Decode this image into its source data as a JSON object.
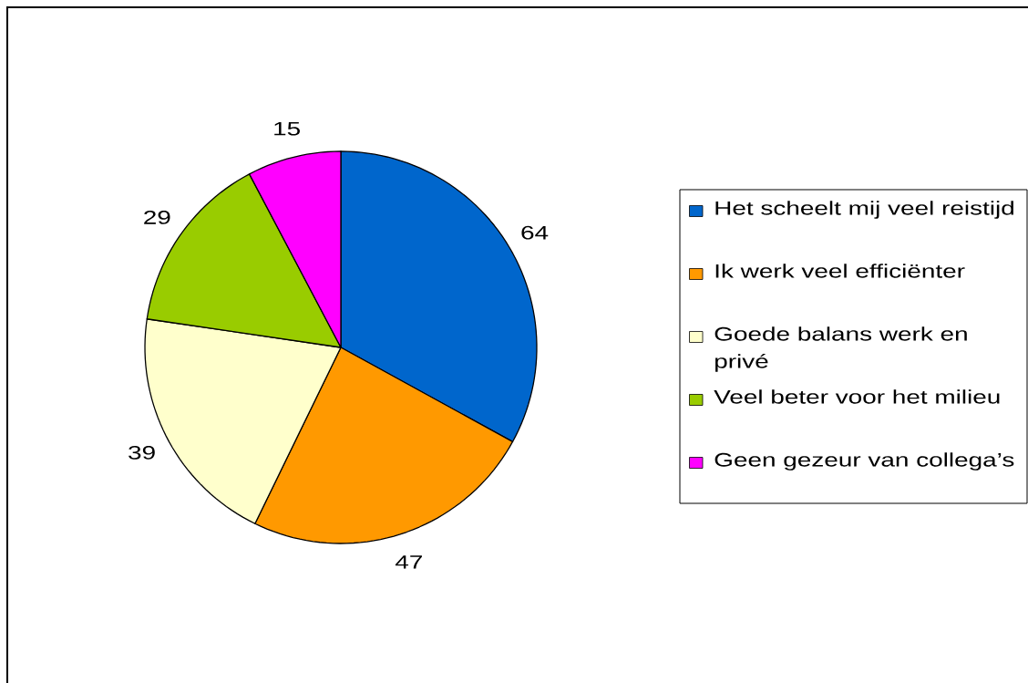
{
  "chart_data": {
    "type": "pie",
    "categories": [
      "Het scheelt mij veel reistijd",
      "Ik werk veel efficiënter",
      "Goede balans werk en privé",
      "Veel beter voor het milieu",
      "Geen gezeur van collega’s"
    ],
    "values": [
      64,
      47,
      39,
      29,
      15
    ],
    "colors": [
      "#0066cc",
      "#ff9900",
      "#ffffcc",
      "#99cc00",
      "#ff00ff"
    ],
    "data_labels": true,
    "legend": "right"
  }
}
